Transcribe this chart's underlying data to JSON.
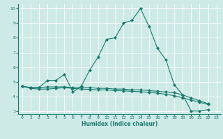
{
  "xlabel": "Humidex (Indice chaleur)",
  "background_color": "#ceeae6",
  "grid_color": "#ffffff",
  "line_color": "#1a7a6e",
  "xlim": [
    -0.5,
    23.5
  ],
  "ylim": [
    2.8,
    10.3
  ],
  "yticks": [
    3,
    4,
    5,
    6,
    7,
    8,
    9,
    10
  ],
  "xticks": [
    0,
    1,
    2,
    3,
    4,
    5,
    6,
    7,
    8,
    9,
    10,
    11,
    12,
    13,
    14,
    15,
    16,
    17,
    18,
    19,
    20,
    21,
    22,
    23
  ],
  "series_main": [
    4.7,
    4.6,
    4.6,
    5.1,
    5.1,
    5.5,
    4.3,
    4.7,
    5.8,
    6.7,
    7.9,
    8.0,
    9.0,
    9.2,
    10.0,
    8.8,
    7.3,
    6.5,
    4.8,
    4.1,
    3.0,
    3.0,
    3.1
  ],
  "series_flat1": [
    4.7,
    4.6,
    4.6,
    4.65,
    4.65,
    4.65,
    4.6,
    4.6,
    4.6,
    4.55,
    4.55,
    4.5,
    4.5,
    4.45,
    4.45,
    4.4,
    4.35,
    4.3,
    4.25,
    4.1,
    3.9,
    3.7,
    3.5
  ],
  "series_flat2": [
    4.7,
    4.55,
    4.5,
    4.5,
    4.55,
    4.6,
    4.55,
    4.5,
    4.48,
    4.45,
    4.45,
    4.4,
    4.38,
    4.35,
    4.32,
    4.28,
    4.22,
    4.15,
    4.05,
    3.9,
    3.75,
    3.6,
    3.45
  ]
}
